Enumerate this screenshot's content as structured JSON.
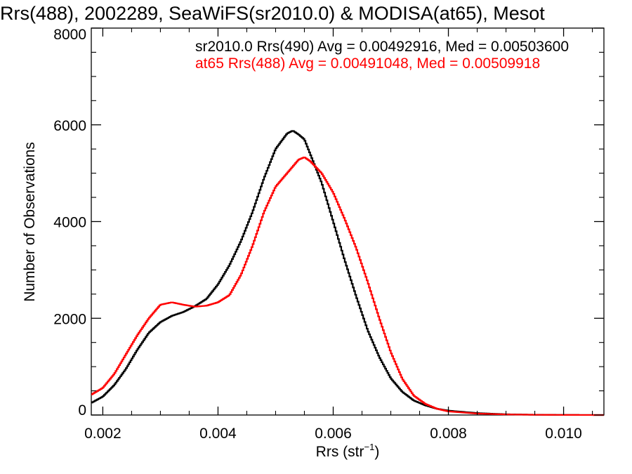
{
  "chart_data": {
    "type": "line",
    "title": "Rrs(488), 2002289, SeaWiFS(sr2010.0) & MODISA(at65), Mesot",
    "xlabel": "Rrs (str",
    "xlabel_sup": "−1",
    "xlabel_close": ")",
    "ylabel": "Number of Observations",
    "xlim": [
      0.0018,
      0.0107
    ],
    "ylim": [
      0,
      8000
    ],
    "x_ticks": [
      0.002,
      0.004,
      0.006,
      0.008,
      0.01
    ],
    "x_tick_labels": [
      "0.002",
      "0.004",
      "0.006",
      "0.008",
      "0.010"
    ],
    "y_ticks": [
      0,
      2000,
      4000,
      6000,
      8000
    ],
    "y_tick_labels": [
      "0",
      "2000",
      "4000",
      "6000",
      "8000"
    ],
    "grid": false,
    "step": true,
    "series": [
      {
        "name": "sr2010.0 Rrs(490) Avg = 0.00492916, Med = 0.00503600",
        "color": "#000000",
        "points": [
          [
            0.0018,
            250
          ],
          [
            0.002,
            380
          ],
          [
            0.0022,
            620
          ],
          [
            0.0024,
            950
          ],
          [
            0.0026,
            1350
          ],
          [
            0.0028,
            1700
          ],
          [
            0.003,
            1920
          ],
          [
            0.0032,
            2050
          ],
          [
            0.0034,
            2130
          ],
          [
            0.0036,
            2250
          ],
          [
            0.0038,
            2400
          ],
          [
            0.004,
            2700
          ],
          [
            0.0042,
            3100
          ],
          [
            0.0044,
            3600
          ],
          [
            0.0046,
            4200
          ],
          [
            0.0048,
            4900
          ],
          [
            0.005,
            5500
          ],
          [
            0.0052,
            5820
          ],
          [
            0.0053,
            5880
          ],
          [
            0.0054,
            5800
          ],
          [
            0.0055,
            5700
          ],
          [
            0.0056,
            5400
          ],
          [
            0.0058,
            4800
          ],
          [
            0.006,
            4000
          ],
          [
            0.0062,
            3200
          ],
          [
            0.0064,
            2450
          ],
          [
            0.0066,
            1750
          ],
          [
            0.0068,
            1200
          ],
          [
            0.007,
            760
          ],
          [
            0.0072,
            480
          ],
          [
            0.0074,
            300
          ],
          [
            0.0076,
            200
          ],
          [
            0.0078,
            130
          ],
          [
            0.008,
            90
          ],
          [
            0.0085,
            40
          ],
          [
            0.009,
            15
          ],
          [
            0.0095,
            6
          ],
          [
            0.01,
            2
          ],
          [
            0.0107,
            0
          ]
        ]
      },
      {
        "name": "at65 Rrs(488) Avg = 0.00491048, Med = 0.00509918",
        "color": "#ff0000",
        "points": [
          [
            0.0018,
            420
          ],
          [
            0.002,
            560
          ],
          [
            0.0022,
            850
          ],
          [
            0.0024,
            1250
          ],
          [
            0.0026,
            1650
          ],
          [
            0.0028,
            2000
          ],
          [
            0.003,
            2280
          ],
          [
            0.0032,
            2330
          ],
          [
            0.0034,
            2280
          ],
          [
            0.0036,
            2240
          ],
          [
            0.0038,
            2260
          ],
          [
            0.004,
            2330
          ],
          [
            0.0042,
            2480
          ],
          [
            0.0044,
            2900
          ],
          [
            0.0046,
            3500
          ],
          [
            0.0048,
            4200
          ],
          [
            0.005,
            4720
          ],
          [
            0.0052,
            5000
          ],
          [
            0.0054,
            5280
          ],
          [
            0.0055,
            5330
          ],
          [
            0.0056,
            5250
          ],
          [
            0.0058,
            5000
          ],
          [
            0.006,
            4600
          ],
          [
            0.0062,
            4050
          ],
          [
            0.0064,
            3450
          ],
          [
            0.0066,
            2750
          ],
          [
            0.0068,
            2000
          ],
          [
            0.007,
            1300
          ],
          [
            0.0072,
            750
          ],
          [
            0.0074,
            400
          ],
          [
            0.0076,
            230
          ],
          [
            0.0078,
            130
          ],
          [
            0.008,
            75
          ],
          [
            0.0085,
            30
          ],
          [
            0.009,
            12
          ],
          [
            0.0095,
            5
          ],
          [
            0.01,
            2
          ],
          [
            0.0107,
            0
          ]
        ]
      }
    ]
  }
}
